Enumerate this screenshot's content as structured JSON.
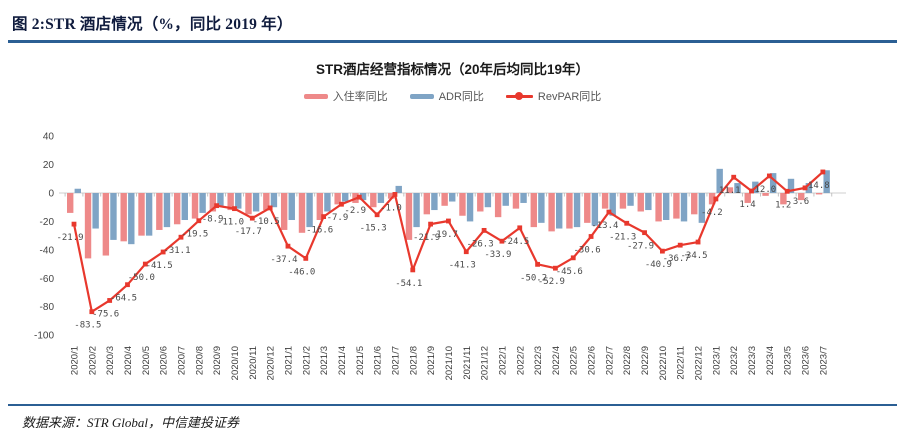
{
  "figure": {
    "caption": "图 2:STR 酒店情况（%，同比 2019 年）",
    "source": "数据来源：STR Global，中信建投证券"
  },
  "colors": {
    "rule_blue": "#2b5f94",
    "occupancy_bar": "#ee8989",
    "adr_bar": "#7fa4c5",
    "revpar_line": "#e8382d",
    "axis_line": "#cfcfcf",
    "tick": "#b5b5b5",
    "label_gray": "#4a4a4a"
  },
  "chart_data": {
    "type": "bar",
    "subtype": "grouped-bars-with-line",
    "title": "STR酒店经营指标情况（20年后均同比19年）",
    "xlabel": "",
    "ylabel": "",
    "ylim": [
      -100,
      40
    ],
    "yticks": [
      40,
      20,
      0,
      -20,
      -40,
      -60,
      -80,
      -100
    ],
    "grid": false,
    "legend_position": "top",
    "categories": [
      "2020/1",
      "2020/2",
      "2020/3",
      "2020/4",
      "2020/5",
      "2020/6",
      "2020/7",
      "2020/8",
      "2020/9",
      "2020/10",
      "2020/11",
      "2020/12",
      "2021/1",
      "2021/2",
      "2021/3",
      "2021/4",
      "2021/5",
      "2021/6",
      "2021/7",
      "2021/8",
      "2021/9",
      "2021/10",
      "2021/11",
      "2021/12",
      "2022/1",
      "2022/2",
      "2022/3",
      "2022/4",
      "2022/5",
      "2022/6",
      "2022/7",
      "2022/8",
      "2022/9",
      "2022/10",
      "2022/11",
      "2022/12",
      "2023/1",
      "2023/2",
      "2023/3",
      "2023/4",
      "2023/5",
      "2023/6",
      "2023/7"
    ],
    "series": [
      {
        "name": "入住率同比",
        "type": "bar",
        "color": "#ee8989",
        "values": [
          -14,
          -46,
          -44,
          -34,
          -30,
          -26,
          -22,
          -18,
          -13,
          -12,
          -15,
          -12,
          -26,
          -28,
          -19,
          -8,
          -7,
          -10,
          -4,
          -33,
          -15,
          -9,
          -16,
          -13,
          -17,
          -11,
          -24,
          -27,
          -25,
          -21,
          -11,
          -11,
          -13,
          -20,
          -18,
          -15,
          -8,
          4,
          -7,
          -2,
          -8,
          -5,
          -1
        ]
      },
      {
        "name": "ADR同比",
        "type": "bar",
        "color": "#7fa4c5",
        "values": [
          3,
          -25,
          -33,
          -36,
          -30,
          -24,
          -19,
          -14,
          -9,
          -11,
          -13,
          -10,
          -19,
          -24,
          -13,
          -6,
          -5,
          -7,
          5,
          -24,
          -12,
          -6,
          -20,
          -10,
          -9,
          -7,
          -21,
          -25,
          -24,
          -23,
          -16,
          -9,
          -12,
          -19,
          -20,
          -21,
          17,
          7,
          8,
          14,
          10,
          7,
          16
        ]
      },
      {
        "name": "RevPAR同比",
        "type": "line",
        "color": "#e8382d",
        "labeled": true,
        "values": [
          -21.9,
          -83.5,
          -75.6,
          -64.5,
          -50.0,
          -41.5,
          -31.1,
          -19.5,
          -8.9,
          -11.0,
          -17.7,
          -10.5,
          -37.4,
          -46.0,
          -16.6,
          -7.9,
          -2.9,
          -15.3,
          -1.0,
          -54.1,
          -21.9,
          -19.7,
          -41.3,
          -26.3,
          -33.9,
          -24.5,
          -50.2,
          -52.9,
          -45.6,
          -30.6,
          -13.4,
          -21.3,
          -27.9,
          -40.9,
          -36.7,
          -34.5,
          -4.2,
          11.1,
          1.4,
          12.0,
          1.2,
          3.6,
          14.8
        ]
      }
    ]
  }
}
